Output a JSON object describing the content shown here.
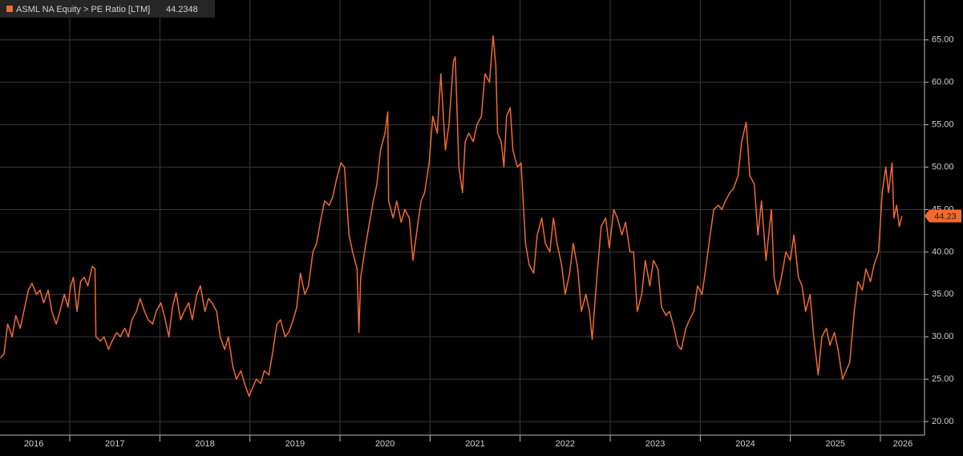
{
  "chart_data": {
    "type": "line",
    "series": [
      {
        "name": "ASML NA Equity > PE Ratio [LTM]",
        "color": "#f26a2e",
        "x": [
          2016.23,
          2016.27,
          2016.31,
          2016.36,
          2016.4,
          2016.45,
          2016.49,
          2016.54,
          2016.58,
          2016.63,
          2016.67,
          2016.71,
          2016.76,
          2016.8,
          2016.85,
          2016.89,
          2016.94,
          2016.98,
          2017.01,
          2017.04,
          2017.08,
          2017.12,
          2017.16,
          2017.2,
          2017.25,
          2017.28,
          2017.29,
          2017.34,
          2017.38,
          2017.43,
          2017.47,
          2017.52,
          2017.56,
          2017.61,
          2017.65,
          2017.69,
          2017.74,
          2017.78,
          2017.83,
          2017.87,
          2017.92,
          2017.96,
          2018.01,
          2018.05,
          2018.1,
          2018.14,
          2018.18,
          2018.23,
          2018.27,
          2018.32,
          2018.36,
          2018.41,
          2018.45,
          2018.5,
          2018.54,
          2018.58,
          2018.63,
          2018.67,
          2018.72,
          2018.76,
          2018.81,
          2018.85,
          2018.9,
          2018.94,
          2018.99,
          2019.03,
          2019.07,
          2019.12,
          2019.16,
          2019.21,
          2019.25,
          2019.3,
          2019.34,
          2019.39,
          2019.43,
          2019.48,
          2019.52,
          2019.56,
          2019.61,
          2019.65,
          2019.7,
          2019.74,
          2019.79,
          2019.83,
          2019.88,
          2019.92,
          2019.96,
          2020.01,
          2020.05,
          2020.1,
          2020.14,
          2020.19,
          2020.21,
          2020.23,
          2020.28,
          2020.32,
          2020.37,
          2020.41,
          2020.45,
          2020.5,
          2020.53,
          2020.54,
          2020.59,
          2020.63,
          2020.68,
          2020.72,
          2020.77,
          2020.81,
          2020.86,
          2020.9,
          2020.94,
          2020.99,
          2021.03,
          2021.08,
          2021.12,
          2021.17,
          2021.21,
          2021.26,
          2021.28,
          2021.32,
          2021.36,
          2021.39,
          2021.43,
          2021.48,
          2021.52,
          2021.57,
          2021.61,
          2021.66,
          2021.7,
          2021.73,
          2021.75,
          2021.79,
          2021.82,
          2021.85,
          2021.89,
          2021.92,
          2021.97,
          2022.01,
          2022.06,
          2022.1,
          2022.15,
          2022.19,
          2022.24,
          2022.28,
          2022.33,
          2022.37,
          2022.41,
          2022.46,
          2022.5,
          2022.55,
          2022.59,
          2022.64,
          2022.68,
          2022.73,
          2022.77,
          2022.8,
          2022.83,
          2022.86,
          2022.9,
          2022.95,
          2022.99,
          2023.04,
          2023.08,
          2023.13,
          2023.17,
          2023.22,
          2023.26,
          2023.3,
          2023.35,
          2023.39,
          2023.44,
          2023.48,
          2023.53,
          2023.57,
          2023.62,
          2023.66,
          2023.71,
          2023.75,
          2023.79,
          2023.84,
          2023.88,
          2023.93,
          2023.97,
          2024.02,
          2024.06,
          2024.11,
          2024.15,
          2024.2,
          2024.24,
          2024.28,
          2024.33,
          2024.37,
          2024.42,
          2024.46,
          2024.51,
          2024.55,
          2024.6,
          2024.64,
          2024.68,
          2024.73,
          2024.76,
          2024.79,
          2024.82,
          2024.86,
          2024.91,
          2024.95,
          2025.0,
          2025.04,
          2025.09,
          2025.13,
          2025.17,
          2025.22,
          2025.26,
          2025.31,
          2025.35,
          2025.4,
          2025.44,
          2025.49,
          2025.53,
          2025.58,
          2025.62,
          2025.66,
          2025.71,
          2025.75,
          2025.8,
          2025.84,
          2025.89,
          2025.93,
          2025.98,
          2026.02,
          2026.06,
          2026.09,
          2026.13,
          2026.15,
          2026.18,
          2026.21,
          2026.24
        ],
        "values": [
          27.5,
          28,
          31.5,
          30,
          32.5,
          31,
          33,
          35.5,
          36.3,
          35,
          35.5,
          34,
          35.5,
          33,
          31.5,
          33,
          35,
          33.5,
          36,
          37,
          33,
          36.5,
          37,
          36,
          38.3,
          38,
          30,
          29.5,
          30,
          28.5,
          29.5,
          30.5,
          30,
          31,
          30,
          32,
          33,
          34.5,
          33,
          32,
          31.5,
          33,
          34,
          32.5,
          30,
          33.5,
          35.2,
          32,
          33,
          34,
          32,
          35,
          36,
          33,
          34.5,
          34,
          33,
          30,
          28.5,
          30,
          26.5,
          25,
          26,
          24.5,
          23,
          24,
          25,
          24.5,
          26,
          25.5,
          28,
          31.5,
          32,
          30,
          30.5,
          32,
          33.5,
          37.5,
          35,
          36,
          40,
          41,
          44,
          46,
          45.5,
          46.5,
          48.5,
          50.5,
          50,
          42,
          40,
          38,
          30.5,
          37,
          40.5,
          43,
          46,
          48,
          52,
          54,
          56.5,
          46,
          44,
          46,
          43.5,
          45,
          44,
          39,
          43,
          46,
          47,
          50.5,
          56,
          54,
          61,
          52,
          55,
          62.5,
          63,
          50,
          47,
          53,
          54,
          53,
          55,
          56,
          61,
          60,
          65.5,
          62,
          54,
          53,
          50,
          56,
          57,
          52,
          50,
          50.5,
          41,
          38.5,
          37.5,
          42,
          44,
          41,
          40,
          44,
          41,
          38.5,
          35,
          37.5,
          41,
          38,
          33,
          35,
          33,
          29.7,
          34,
          38,
          43,
          44,
          40.5,
          45,
          44,
          42,
          43.5,
          40,
          40,
          33,
          35,
          39,
          36,
          39,
          38,
          33.5,
          32.5,
          33,
          31,
          29,
          28.5,
          31,
          32,
          33,
          36,
          35,
          38,
          42,
          45,
          45.5,
          45,
          46,
          47,
          47.5,
          49,
          53,
          55.3,
          49,
          48,
          42,
          46,
          39,
          42,
          45,
          37,
          35,
          37.5,
          40,
          39,
          42,
          37,
          36,
          33,
          35,
          30,
          25.5,
          30,
          31,
          29,
          30.5,
          28.5,
          25,
          26,
          27,
          33,
          36.5,
          35.5,
          38,
          36.5,
          38.5,
          40,
          47,
          50,
          47,
          50.5,
          44,
          45.5,
          43,
          44.2348
        ],
        "last_value_label": "44.23"
      }
    ],
    "xlim": [
      2016.225,
      2026.49
    ],
    "xticks": [
      {
        "value": 2016.6,
        "label": "2016"
      },
      {
        "value": 2017.5,
        "label": "2017"
      },
      {
        "value": 2018.5,
        "label": "2018"
      },
      {
        "value": 2019.5,
        "label": "2019"
      },
      {
        "value": 2020.5,
        "label": "2020"
      },
      {
        "value": 2021.5,
        "label": "2021"
      },
      {
        "value": 2022.5,
        "label": "2022"
      },
      {
        "value": 2023.5,
        "label": "2023"
      },
      {
        "value": 2024.5,
        "label": "2024"
      },
      {
        "value": 2025.5,
        "label": "2025"
      },
      {
        "value": 2026.25,
        "label": "2026"
      }
    ],
    "xgrid": [
      2017,
      2018,
      2019,
      2020,
      2021,
      2022,
      2023,
      2024,
      2025,
      2026
    ],
    "ylim": [
      18.4,
      69.7
    ],
    "yticks": [
      {
        "value": 20,
        "label": "20.00"
      },
      {
        "value": 25,
        "label": "25.00"
      },
      {
        "value": 30,
        "label": "30.00"
      },
      {
        "value": 35,
        "label": "35.00"
      },
      {
        "value": 40,
        "label": "40.00"
      },
      {
        "value": 45,
        "label": "45.00"
      },
      {
        "value": 50,
        "label": "50.00"
      },
      {
        "value": 55,
        "label": "55.00"
      },
      {
        "value": 60,
        "label": "60.00"
      },
      {
        "value": 65,
        "label": "65.00"
      }
    ],
    "grid": true
  }
}
